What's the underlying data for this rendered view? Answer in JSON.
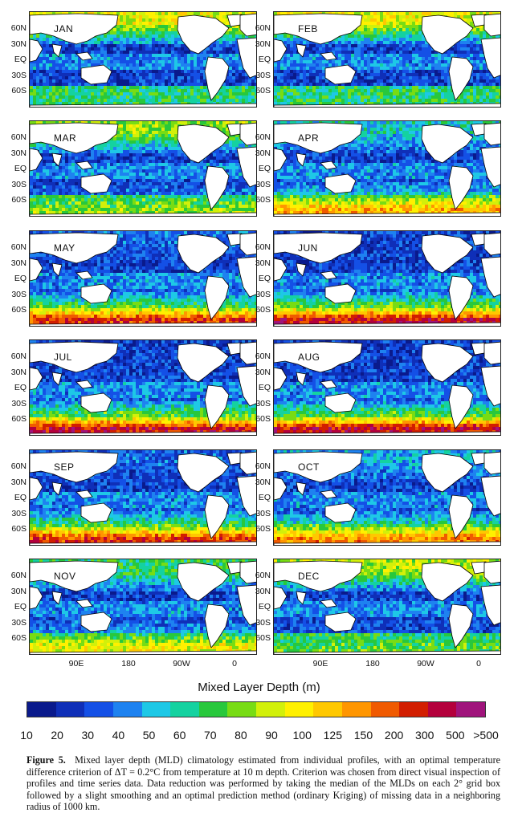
{
  "panels": [
    {
      "month": "JAN"
    },
    {
      "month": "FEB"
    },
    {
      "month": "MAR"
    },
    {
      "month": "APR"
    },
    {
      "month": "MAY"
    },
    {
      "month": "JUN"
    },
    {
      "month": "JUL"
    },
    {
      "month": "AUG"
    },
    {
      "month": "SEP"
    },
    {
      "month": "OCT"
    },
    {
      "month": "NOV"
    },
    {
      "month": "DEC"
    }
  ],
  "lat_ticks": [
    "60N",
    "30N",
    "EQ",
    "30S",
    "60S"
  ],
  "lon_ticks": [
    "90E",
    "180",
    "90W",
    "0"
  ],
  "colorbar": {
    "title": "Mixed Layer Depth (m)",
    "tick_labels": [
      "10",
      "20",
      "30",
      "40",
      "50",
      "60",
      "70",
      "80",
      "90",
      "100",
      "125",
      "150",
      "200",
      "300",
      "500",
      ">500"
    ],
    "colors": [
      "#0a1a8c",
      "#0f2fb8",
      "#1450e6",
      "#1e82f0",
      "#1ec8e6",
      "#14d2a0",
      "#28c83c",
      "#78dc14",
      "#d2f00a",
      "#fff000",
      "#ffc800",
      "#ff9600",
      "#f05a00",
      "#d21e00",
      "#b4003c",
      "#a0147c"
    ]
  },
  "caption": {
    "figure_label": "Figure 5.",
    "text": "Mixed layer depth (MLD) climatology estimated from individual profiles, with an optimal temperature difference criterion of ΔT = 0.2°C from temperature at 10 m depth. Criterion was chosen from direct visual inspection of profiles and time series data. Data reduction was performed by taking the median of the MLDs on each 2° grid box followed by a slight smoothing and an optimal prediction method (ordinary Kriging) of missing data in a neighboring radius of 1000 km."
  }
}
